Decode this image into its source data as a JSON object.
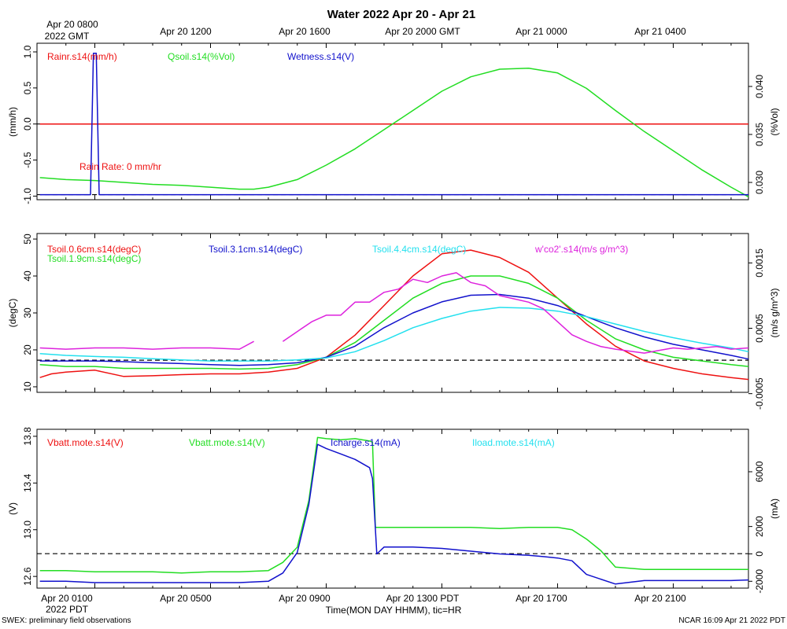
{
  "title": "Water 2022 Apr 20 - Apr 21",
  "footer_left": "SWEX: preliminary field observations",
  "footer_right": "NCAR 16:09 Apr 21 2022 PDT",
  "xlabel": "Time(MON DAY HHMM), tic=HR",
  "top_ticks": [
    "Apr 20 0800",
    "Apr 20 1200",
    "Apr 20 1600",
    "Apr 20 2000 GMT",
    "Apr 21 0000",
    "Apr 21 0400"
  ],
  "top_first_sub": "2022 GMT",
  "bottom_ticks": [
    "Apr 20 0100",
    "Apr 20 0500",
    "Apr 20 0900",
    "Apr 20 1300 PDT",
    "Apr 20 1700",
    "Apr 20 2100"
  ],
  "bottom_first_sub": "2022 PDT",
  "colors": {
    "red": "#ee1111",
    "green": "#22dd22",
    "blue": "#1111cc",
    "cyan": "#22e0ee",
    "magenta": "#dd22dd",
    "black": "#000000"
  },
  "chart_data": [
    {
      "type": "line",
      "x_unit": "hours since Apr 20 0000 PDT",
      "xlim": [
        -1,
        23.6
      ],
      "ylabel_left": "(mm/h)",
      "ylabel_right": "(%Vol)",
      "ylim_left": [
        -1.05,
        1.12
      ],
      "ylim_right": [
        0.0282,
        0.0445
      ],
      "yticks_left": [
        "1.0",
        "0.5",
        "0.0",
        "-0.5",
        "-1.0"
      ],
      "yticks_left_values": [
        1.0,
        0.5,
        0.0,
        -0.5,
        -1.0
      ],
      "yticks_right": [
        "0.040",
        "0.035",
        "0.030"
      ],
      "yticks_right_values": [
        0.04,
        0.035,
        0.03
      ],
      "legend": [
        "Rainr.s14(mm/h)",
        "Qsoil.s14(%Vol)",
        "Wetness.s14(V)"
      ],
      "annotation": "Rain Rate: 0 mm/hr",
      "series": [
        {
          "name": "Rainr.s14",
          "axis": "left",
          "color": "red",
          "x": [
            -0.9,
            23.6
          ],
          "y": [
            0.0,
            0.0
          ]
        },
        {
          "name": "Qsoil.s14",
          "axis": "right",
          "color": "green",
          "x": [
            -0.9,
            0,
            1,
            2,
            3,
            4,
            5,
            6,
            6.5,
            7,
            8,
            9,
            10,
            11,
            12,
            13,
            14,
            15,
            16,
            17,
            18,
            19,
            20,
            21,
            22,
            23,
            23.6
          ],
          "y": [
            0.0305,
            0.0303,
            0.0302,
            0.03,
            0.0298,
            0.0297,
            0.0295,
            0.0293,
            0.0293,
            0.0295,
            0.0303,
            0.0318,
            0.0335,
            0.0355,
            0.0375,
            0.0395,
            0.041,
            0.0418,
            0.0419,
            0.0414,
            0.0398,
            0.0375,
            0.0353,
            0.0333,
            0.0313,
            0.0295,
            0.0285
          ]
        },
        {
          "name": "Wetness.s14",
          "axis": "left",
          "color": "blue",
          "x": [
            -0.9,
            0.85,
            0.95,
            1.05,
            1.15,
            23.6
          ],
          "y": [
            -0.98,
            -0.98,
            0.98,
            0.98,
            -0.98,
            -0.98
          ]
        }
      ],
      "hlines": [
        {
          "axis": "left",
          "y": 0.0,
          "style": "dashed"
        },
        {
          "axis": "left",
          "y": -0.98,
          "style": "dashed"
        }
      ]
    },
    {
      "type": "line",
      "x_unit": "hours since Apr 20 0000 PDT",
      "xlim": [
        -1,
        23.6
      ],
      "ylabel_left": "(degC)",
      "ylabel_right": "(m/s g/m^3)",
      "ylim_left": [
        8.5,
        51.5
      ],
      "ylim_right": [
        -0.00048,
        0.00195
      ],
      "yticks_left": [
        "50",
        "40",
        "30",
        "20",
        "10"
      ],
      "yticks_left_values": [
        50,
        40,
        30,
        20,
        10
      ],
      "yticks_right": [
        "0.0015",
        "0.0005",
        "-0.0005"
      ],
      "yticks_right_values": [
        0.0015,
        0.0005,
        -0.0005
      ],
      "legend": [
        "Tsoil.0.6cm.s14(degC)",
        "Tsoil.1.9cm.s14(degC)",
        "Tsoil.3.1cm.s14(degC)",
        "Tsoil.4.4cm.s14(degC)",
        "w'co2'.s14(m/s g/m^3)"
      ],
      "series": [
        {
          "name": "Tsoil.0.6cm.s14",
          "axis": "left",
          "color": "red",
          "x": [
            -0.9,
            -0.5,
            0,
            1,
            2,
            3,
            4,
            5,
            6,
            7,
            8,
            9,
            10,
            11,
            12,
            13,
            14,
            15,
            16,
            17,
            18,
            19,
            20,
            21,
            22,
            23,
            23.6
          ],
          "y": [
            12.5,
            13.5,
            14,
            14.5,
            12.8,
            13,
            13.3,
            13.5,
            13.5,
            14,
            15,
            18,
            24,
            32,
            40,
            46,
            47,
            45,
            41,
            34,
            27,
            21,
            17,
            15,
            13.5,
            12.5,
            12
          ]
        },
        {
          "name": "Tsoil.1.9cm.s14",
          "axis": "left",
          "color": "green",
          "x": [
            -0.9,
            0,
            1,
            2,
            3,
            4,
            5,
            6,
            7,
            8,
            9,
            10,
            11,
            12,
            13,
            14,
            15,
            16,
            17,
            18,
            19,
            20,
            21,
            22,
            23,
            23.6
          ],
          "y": [
            16,
            15.5,
            15.5,
            15,
            15,
            15,
            15,
            14.8,
            15,
            16,
            18,
            22,
            28,
            34,
            38,
            40,
            40,
            38,
            34,
            28,
            23,
            20,
            18,
            17,
            16,
            15.5
          ]
        },
        {
          "name": "Tsoil.3.1cm.s14",
          "axis": "left",
          "color": "blue",
          "x": [
            -0.9,
            0,
            1,
            2,
            3,
            4,
            5,
            6,
            7,
            8,
            9,
            10,
            11,
            12,
            13,
            14,
            15,
            16,
            17,
            18,
            19,
            20,
            21,
            22,
            23,
            23.6
          ],
          "y": [
            17,
            17,
            17,
            16.8,
            16.5,
            16.3,
            16,
            15.8,
            16,
            16.5,
            18,
            21,
            26,
            30,
            33,
            34.8,
            35,
            34,
            32,
            29,
            26,
            23.5,
            21.5,
            20,
            18.5,
            17.5
          ]
        },
        {
          "name": "Tsoil.4.4cm.s14",
          "axis": "left",
          "color": "cyan",
          "x": [
            -0.9,
            0,
            1,
            2,
            3,
            4,
            5,
            6,
            7,
            8,
            9,
            10,
            11,
            12,
            13,
            14,
            15,
            16,
            17,
            18,
            19,
            20,
            21,
            22,
            23,
            23.6
          ],
          "y": [
            19,
            18.5,
            18.2,
            18,
            17.6,
            17.3,
            17,
            17,
            17,
            17.3,
            17.8,
            19.5,
            22.5,
            26,
            28.5,
            30.5,
            31.5,
            31.3,
            30.5,
            29,
            27,
            25,
            23.3,
            21.8,
            20.5,
            19.5
          ]
        },
        {
          "name": "w'co2'.s14",
          "axis": "right",
          "color": "magenta",
          "x": [
            -0.9,
            0,
            1,
            2,
            3,
            4,
            5,
            6,
            6.5,
            7,
            7.5,
            8,
            8.5,
            9,
            9.5,
            10,
            10.5,
            11,
            11.5,
            12,
            12.5,
            13,
            13.5,
            14,
            14.5,
            15,
            15.5,
            16,
            16.5,
            17,
            17.5,
            18,
            18.5,
            19,
            19.5,
            20,
            20.5,
            21,
            21.5,
            22,
            22.5,
            23,
            23.6
          ],
          "y": [
            0.0002,
            0.00018,
            0.0002,
            0.0002,
            0.00018,
            0.0002,
            0.0002,
            0.00018,
            0.0003,
            null,
            0.0003,
            0.00045,
            0.0006,
            0.0007,
            0.0007,
            0.0009,
            0.0009,
            0.00105,
            0.0011,
            0.00125,
            0.0012,
            0.0013,
            0.00135,
            0.0012,
            0.00115,
            0.001,
            0.00095,
            0.0009,
            0.0008,
            0.0006,
            0.0004,
            0.0003,
            0.00022,
            0.00018,
            0.00015,
            0.00012,
            0.00016,
            0.0002,
            0.00018,
            0.0002,
            0.00022,
            0.00018,
            0.0002
          ]
        }
      ],
      "hlines": [
        {
          "axis": "left",
          "y": 17.2,
          "style": "dashed"
        }
      ]
    },
    {
      "type": "line",
      "x_unit": "hours since Apr 20 0000 PDT",
      "xlim": [
        -1,
        23.6
      ],
      "ylabel_left": "(V)",
      "ylabel_right": "(mA)",
      "ylim_left": [
        12.5,
        13.86
      ],
      "ylim_right": [
        -2500,
        9100
      ],
      "yticks_left": [
        "13.8",
        "13.4",
        "13.0",
        "12.6"
      ],
      "yticks_left_values": [
        13.8,
        13.4,
        13.0,
        12.6
      ],
      "yticks_right": [
        "6000",
        "2000",
        "0",
        "-2000"
      ],
      "yticks_right_values": [
        6000,
        2000,
        0,
        -2000
      ],
      "legend": [
        "Vbatt.mote.s14(V)",
        "Vbatt.mote.s14(V)",
        "Icharge.s14(mA)",
        "Iload.mote.s14(mA)"
      ],
      "series": [
        {
          "name": "Vbatt.mote.s14",
          "axis": "left",
          "color": "green",
          "x": [
            -0.9,
            0,
            1,
            2,
            3,
            4,
            5,
            6,
            7,
            7.5,
            8,
            8.4,
            8.7,
            9,
            9.5,
            10,
            10.5,
            10.6,
            10.7,
            11,
            12,
            13,
            14,
            15,
            16,
            16.5,
            17,
            17.5,
            18,
            18.5,
            19,
            20,
            21,
            22,
            23,
            23.6
          ],
          "y": [
            12.65,
            12.65,
            12.64,
            12.64,
            12.64,
            12.63,
            12.64,
            12.64,
            12.65,
            12.72,
            12.85,
            13.25,
            13.79,
            13.78,
            13.77,
            13.78,
            13.76,
            13.75,
            13.02,
            13.02,
            13.02,
            13.02,
            13.02,
            13.01,
            13.02,
            13.02,
            13.02,
            13.0,
            12.92,
            12.82,
            12.68,
            12.66,
            12.66,
            12.66,
            12.66,
            12.66
          ]
        },
        {
          "name": "Icharge.s14",
          "axis": "right",
          "color": "blue",
          "x": [
            -0.9,
            0,
            1,
            2,
            3,
            4,
            5,
            6,
            7,
            7.5,
            8,
            8.4,
            8.7,
            9,
            9.5,
            10,
            10.5,
            10.6,
            10.75,
            11,
            12,
            13,
            14,
            15,
            16,
            16.5,
            17,
            17.5,
            18,
            19,
            20,
            21,
            22,
            23,
            23.6
          ],
          "y": [
            -2000,
            -2000,
            -2100,
            -2100,
            -2100,
            -2100,
            -2100,
            -2100,
            -2000,
            -1400,
            100,
            3600,
            8000,
            7700,
            7300,
            6900,
            6300,
            5500,
            0,
            500,
            500,
            400,
            200,
            0,
            -100,
            -200,
            -300,
            -500,
            -1500,
            -2200,
            -1950,
            -1950,
            -1950,
            -1950,
            -1900
          ]
        }
      ],
      "hlines": [
        {
          "axis": "left",
          "y": 12.795,
          "style": "dashed"
        }
      ]
    }
  ]
}
